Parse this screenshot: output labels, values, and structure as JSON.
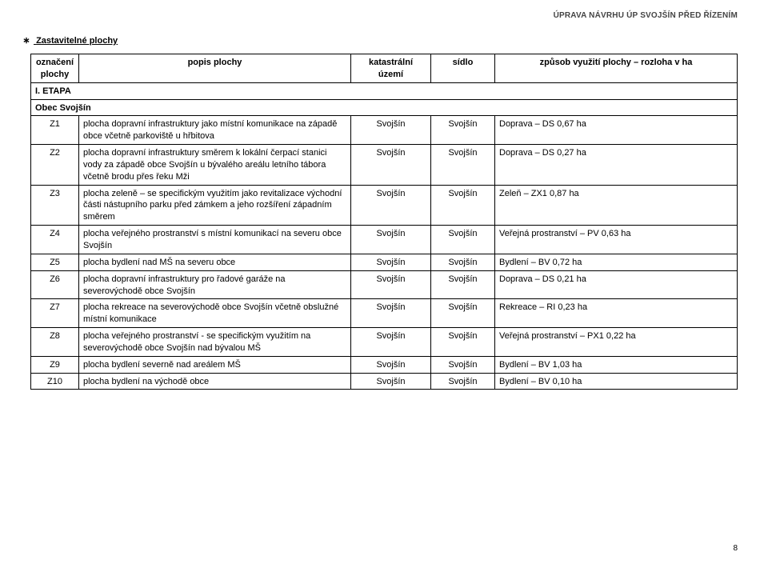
{
  "header": {
    "running_head": "ÚPRAVA NÁVRHU ÚP SVOJŠÍN PŘED ŘÍZENÍM",
    "section_title": "Zastavitelné plochy",
    "section_marker": "∗",
    "page_number": "8"
  },
  "table": {
    "columns": {
      "code": "označení plochy",
      "desc": "popis plochy",
      "katastr": "katastrální území",
      "sidlo": "sídlo",
      "use": "způsob využití plochy – rozloha v ha"
    },
    "etapa_row": "I. ETAPA",
    "obec_row": "Obec Svojšín",
    "rows": [
      {
        "code": "Z1",
        "desc": "plocha dopravní infrastruktury jako místní komunikace na západě obce včetně parkoviště u hřbitova",
        "katastr": "Svojšín",
        "sidlo": "Svojšín",
        "use": "Doprava – DS  0,67 ha"
      },
      {
        "code": "Z2",
        "desc": "plocha dopravní infrastruktury směrem k lokální čerpací stanici vody za západě obce Svojšín u bývalého areálu letního tábora včetně brodu přes řeku Mži",
        "katastr": "Svojšín",
        "sidlo": "Svojšín",
        "use": "Doprava – DS  0,27 ha"
      },
      {
        "code": "Z3",
        "desc": "plocha zeleně – se specifickým využitím jako revitalizace východní části nástupního parku před zámkem a jeho rozšíření západním směrem",
        "katastr": "Svojšín",
        "sidlo": "Svojšín",
        "use": "Zeleň – ZX1  0,87 ha"
      },
      {
        "code": "Z4",
        "desc": "plocha veřejného prostranství s místní komunikací na severu obce Svojšín",
        "katastr": "Svojšín",
        "sidlo": "Svojšín",
        "use": "Veřejná prostranství – PV  0,63 ha"
      },
      {
        "code": "Z5",
        "desc": "plocha bydlení nad MŠ na severu obce",
        "katastr": "Svojšín",
        "sidlo": "Svojšín",
        "use": "Bydlení – BV  0,72 ha"
      },
      {
        "code": "Z6",
        "desc": "plocha dopravní infrastruktury pro řadové garáže na severovýchodě obce Svojšín",
        "katastr": "Svojšín",
        "sidlo": "Svojšín",
        "use": "Doprava – DS  0,21 ha"
      },
      {
        "code": "Z7",
        "desc": "plocha rekreace na severovýchodě obce Svojšín včetně obslužné místní komunikace",
        "katastr": "Svojšín",
        "sidlo": "Svojšín",
        "use": "Rekreace – RI  0,23 ha"
      },
      {
        "code": "Z8",
        "desc": "plocha veřejného prostranství - se specifickým využitím na severovýchodě obce Svojšín nad bývalou MŠ",
        "katastr": "Svojšín",
        "sidlo": "Svojšín",
        "use": "Veřejná prostranství – PX1  0,22 ha"
      },
      {
        "code": "Z9",
        "desc": "plocha bydlení severně nad areálem MŠ",
        "katastr": "Svojšín",
        "sidlo": "Svojšín",
        "use": "Bydlení – BV  1,03 ha"
      },
      {
        "code": "Z10",
        "desc": "plocha bydlení na východě obce",
        "katastr": "Svojšín",
        "sidlo": "Svojšín",
        "use": "Bydlení – BV  0,10 ha"
      }
    ]
  }
}
